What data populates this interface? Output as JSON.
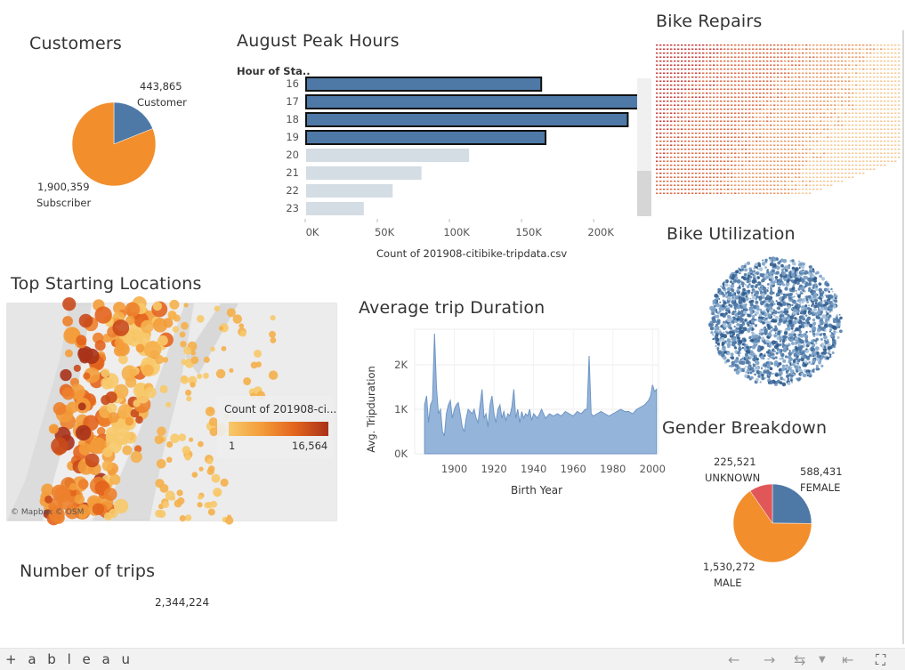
{
  "customers": {
    "title": "Customers",
    "customer_value": "443,865",
    "customer_label": "Customer",
    "subscriber_value": "1,900,359",
    "subscriber_label": "Subscriber",
    "colors": {
      "customer": "#4e79a7",
      "subscriber": "#f28e2b"
    }
  },
  "peak_hours": {
    "title": "August Peak Hours",
    "axis_header": "Hour of Sta..",
    "x_title": "Count of 201908-citibike-tripdata.csv"
  },
  "bike_repairs": {
    "title": "Bike Repairs"
  },
  "bike_utilization": {
    "title": "Bike Utilization"
  },
  "top_locations": {
    "title": "Top Starting Locations",
    "legend_title": "Count of 201908-ci...",
    "legend_min": "1",
    "legend_max": "16,564",
    "attribution": "© Mapbox  © OSM"
  },
  "avg_trip": {
    "title": "Average trip Duration"
  },
  "gender": {
    "title": "Gender Breakdown",
    "unknown_value": "225,521",
    "unknown_label": "UNKNOWN",
    "female_value": "588,431",
    "female_label": "FEMALE",
    "male_value": "1,530,272",
    "male_label": "MALE",
    "colors": {
      "female": "#4e79a7",
      "male": "#f28e2b",
      "unknown": "#e15759"
    }
  },
  "num_trips": {
    "title": "Number of trips",
    "value": "2,344,224"
  },
  "footer": {
    "brand": "+ a b l e a u",
    "icons": [
      "undo-icon",
      "redo-icon",
      "revert-icon",
      "reset-icon",
      "fullscreen-icon"
    ]
  },
  "chart_data": [
    {
      "type": "pie",
      "title": "Customers",
      "categories": [
        "Customer",
        "Subscriber"
      ],
      "values": [
        443865,
        1900359
      ]
    },
    {
      "type": "bar",
      "title": "August Peak Hours",
      "orientation": "horizontal",
      "ylabel": "Hour of Sta..",
      "xlabel": "Count of 201908-citibike-tripdata.csv",
      "categories": [
        "16",
        "17",
        "18",
        "19",
        "20",
        "21",
        "22",
        "23"
      ],
      "values": [
        163000,
        232000,
        223000,
        166000,
        113000,
        80000,
        60000,
        40000
      ],
      "highlighted": [
        true,
        true,
        true,
        true,
        false,
        false,
        false,
        false
      ],
      "xlim": [
        0,
        240000
      ],
      "ticks": [
        "0K",
        "50K",
        "100K",
        "150K",
        "200K"
      ],
      "tick_values": [
        0,
        50000,
        100000,
        150000,
        200000
      ]
    },
    {
      "type": "area",
      "title": "Average trip Duration",
      "xlabel": "Birth Year",
      "ylabel": "Avg. Tripduration",
      "xlim": [
        1880,
        2003
      ],
      "ylim": [
        0,
        2800
      ],
      "x_ticks": [
        "1900",
        "1920",
        "1940",
        "1960",
        "1980",
        "2000"
      ],
      "x_tick_values": [
        1900,
        1920,
        1940,
        1960,
        1980,
        2000
      ],
      "y_ticks": [
        "0K",
        "1K",
        "2K"
      ],
      "y_tick_values": [
        0,
        1000,
        2000
      ],
      "x": [
        1885,
        1886,
        1887,
        1888,
        1889,
        1890,
        1891,
        1892,
        1893,
        1894,
        1895,
        1896,
        1897,
        1898,
        1899,
        1900,
        1901,
        1902,
        1903,
        1904,
        1905,
        1906,
        1907,
        1908,
        1909,
        1910,
        1911,
        1912,
        1913,
        1914,
        1915,
        1916,
        1917,
        1918,
        1919,
        1920,
        1921,
        1922,
        1923,
        1924,
        1925,
        1926,
        1927,
        1928,
        1929,
        1930,
        1931,
        1932,
        1933,
        1934,
        1935,
        1936,
        1937,
        1938,
        1939,
        1940,
        1942,
        1944,
        1946,
        1948,
        1950,
        1952,
        1954,
        1956,
        1958,
        1960,
        1962,
        1964,
        1966,
        1967,
        1968,
        1969,
        1970,
        1972,
        1974,
        1976,
        1978,
        1980,
        1982,
        1984,
        1986,
        1988,
        1990,
        1992,
        1994,
        1996,
        1998,
        1999,
        2000,
        2001,
        2002
      ],
      "y": [
        1100,
        1300,
        700,
        1100,
        1200,
        2700,
        1500,
        900,
        1000,
        500,
        400,
        900,
        1100,
        1200,
        800,
        1000,
        1100,
        1150,
        900,
        600,
        500,
        800,
        1000,
        950,
        900,
        1000,
        800,
        700,
        1100,
        1450,
        800,
        900,
        600,
        1100,
        1300,
        900,
        700,
        1000,
        1100,
        800,
        950,
        750,
        900,
        850,
        1050,
        1450,
        800,
        1000,
        700,
        950,
        800,
        900,
        850,
        1000,
        750,
        900,
        800,
        1000,
        800,
        900,
        850,
        900,
        850,
        950,
        900,
        850,
        950,
        900,
        1000,
        1000,
        2200,
        900,
        850,
        900,
        950,
        900,
        850,
        900,
        950,
        1000,
        950,
        950,
        900,
        1000,
        1050,
        1100,
        1200,
        1300,
        1550,
        1400,
        1450
      ]
    },
    {
      "type": "pie",
      "title": "Gender Breakdown",
      "categories": [
        "FEMALE",
        "MALE",
        "UNKNOWN"
      ],
      "values": [
        588431,
        1530272,
        225521
      ]
    }
  ]
}
